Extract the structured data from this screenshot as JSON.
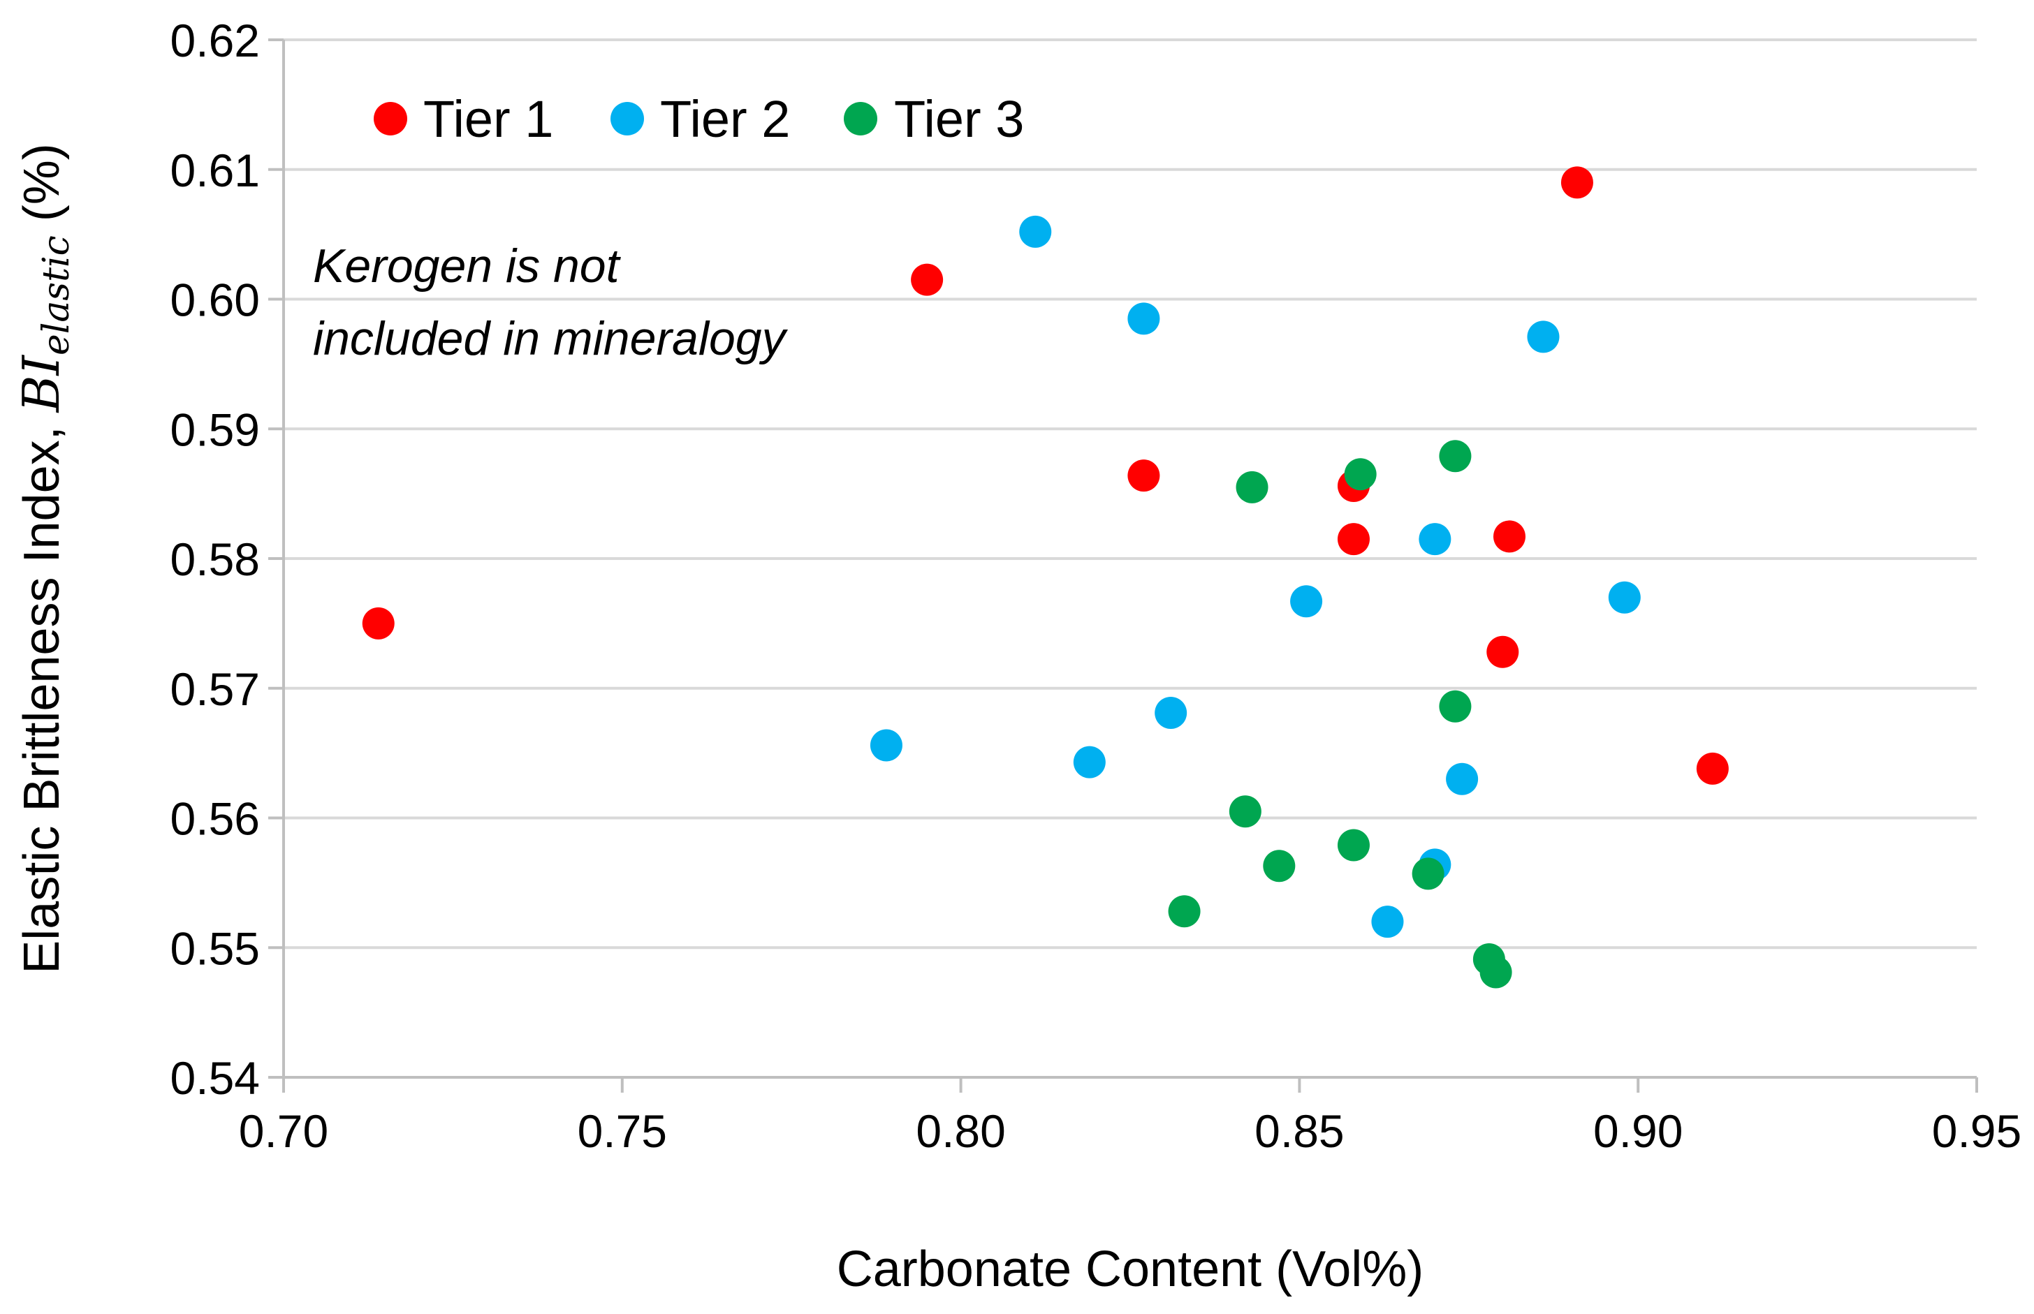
{
  "chart_data": {
    "type": "scatter",
    "title": "",
    "xlabel": "Carbonate Content (Vol%)",
    "ylabel": {
      "prefix": "Elastic Brittleness Index, ",
      "symbol": "BI",
      "subscript": "elastic",
      "suffix": " (%)"
    },
    "xlim": [
      0.7,
      0.95
    ],
    "ylim": [
      0.54,
      0.62
    ],
    "x_ticks": [
      "0.70",
      "0.75",
      "0.80",
      "0.85",
      "0.90",
      "0.95"
    ],
    "y_ticks": [
      "0.54",
      "0.55",
      "0.56",
      "0.57",
      "0.58",
      "0.59",
      "0.60",
      "0.61",
      "0.62"
    ],
    "grid": "horizontal",
    "legend_position": "top-left",
    "annotation": [
      "Kerogen is not",
      "included in mineralogy"
    ],
    "series": [
      {
        "name": "Tier 1",
        "color": "#ff0000",
        "points": [
          [
            0.714,
            0.575
          ],
          [
            0.795,
            0.6015
          ],
          [
            0.827,
            0.5864
          ],
          [
            0.858,
            0.5856
          ],
          [
            0.858,
            0.5815
          ],
          [
            0.881,
            0.5817
          ],
          [
            0.88,
            0.5728
          ],
          [
            0.891,
            0.609
          ],
          [
            0.911,
            0.5638
          ]
        ]
      },
      {
        "name": "Tier 2",
        "color": "#00b0f0",
        "points": [
          [
            0.789,
            0.5656
          ],
          [
            0.811,
            0.6052
          ],
          [
            0.819,
            0.5643
          ],
          [
            0.827,
            0.5985
          ],
          [
            0.831,
            0.5681
          ],
          [
            0.851,
            0.5767
          ],
          [
            0.863,
            0.552
          ],
          [
            0.87,
            0.5815
          ],
          [
            0.87,
            0.5564
          ],
          [
            0.874,
            0.563
          ],
          [
            0.886,
            0.5971
          ],
          [
            0.898,
            0.577
          ]
        ]
      },
      {
        "name": "Tier 3",
        "color": "#00a650",
        "points": [
          [
            0.833,
            0.5528
          ],
          [
            0.842,
            0.5605
          ],
          [
            0.843,
            0.5855
          ],
          [
            0.847,
            0.5563
          ],
          [
            0.858,
            0.5579
          ],
          [
            0.859,
            0.5865
          ],
          [
            0.869,
            0.5557
          ],
          [
            0.873,
            0.5879
          ],
          [
            0.873,
            0.5686
          ],
          [
            0.878,
            0.5491
          ],
          [
            0.879,
            0.5481
          ]
        ]
      }
    ]
  }
}
